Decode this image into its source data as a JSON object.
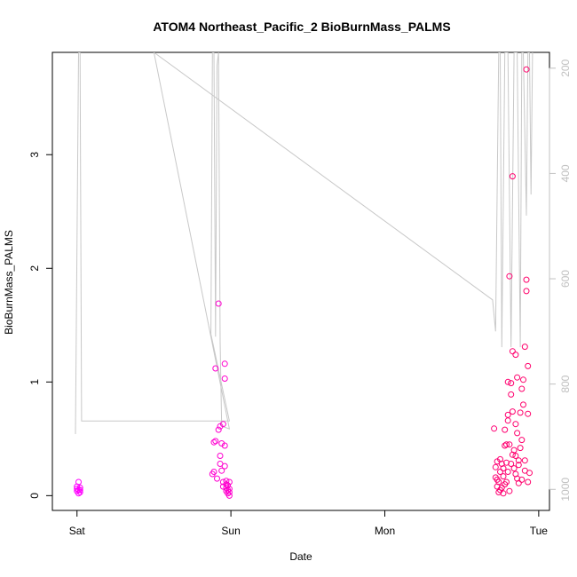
{
  "chart_data": {
    "type": "scatter",
    "title": "ATOM4 Northeast_Pacific_2 BioBurnMass_PALMS",
    "xlabel": "Date",
    "ylabel": "BioBurnMass_PALMS",
    "x_tick_labels": [
      "Sat",
      "Sun",
      "Mon",
      "Tue"
    ],
    "x_tick_values": [
      0,
      1,
      2,
      3
    ],
    "xlim": [
      -0.16,
      3.07
    ],
    "ylim": [
      -0.13,
      3.9
    ],
    "y_ticks": [
      0,
      1,
      2,
      3
    ],
    "right_axis": {
      "ticks": [
        200,
        400,
        600,
        800,
        1000
      ],
      "ylim": [
        1040,
        170
      ],
      "color": "#c0c0c0"
    },
    "grid": false,
    "series": [
      {
        "marker": "open-circle",
        "color_range": [
          "#ff00ff",
          "#ff0066"
        ],
        "points": [
          [
            0.0,
            0.04
          ],
          [
            0.0,
            0.06
          ],
          [
            0.01,
            0.05
          ],
          [
            0.01,
            0.12
          ],
          [
            0.02,
            0.07
          ],
          [
            0.02,
            0.03
          ],
          [
            0.0,
            0.08
          ],
          [
            0.01,
            0.02
          ],
          [
            0.02,
            0.05
          ],
          [
            0.88,
            0.19
          ],
          [
            0.89,
            0.21
          ],
          [
            0.89,
            0.47
          ],
          [
            0.9,
            0.48
          ],
          [
            0.9,
            1.12
          ],
          [
            0.91,
            0.15
          ],
          [
            0.92,
            0.58
          ],
          [
            0.92,
            1.69
          ],
          [
            0.93,
            0.61
          ],
          [
            0.93,
            0.35
          ],
          [
            0.93,
            0.28
          ],
          [
            0.94,
            0.46
          ],
          [
            0.94,
            0.22
          ],
          [
            0.95,
            0.63
          ],
          [
            0.95,
            0.12
          ],
          [
            0.95,
            0.08
          ],
          [
            0.96,
            0.44
          ],
          [
            0.96,
            1.16
          ],
          [
            0.96,
            1.03
          ],
          [
            0.96,
            0.26
          ],
          [
            0.97,
            0.07
          ],
          [
            0.97,
            0.13
          ],
          [
            0.97,
            0.1
          ],
          [
            0.98,
            0.05
          ],
          [
            0.98,
            0.02
          ],
          [
            0.99,
            0.03
          ],
          [
            0.99,
            0.12
          ],
          [
            0.99,
            0.06
          ],
          [
            0.98,
            0.09
          ],
          [
            0.97,
            0.04
          ],
          [
            0.99,
            0.0
          ],
          [
            2.71,
            0.59
          ],
          [
            2.72,
            0.25
          ],
          [
            2.72,
            0.16
          ],
          [
            2.73,
            0.3
          ],
          [
            2.73,
            0.08
          ],
          [
            2.74,
            0.12
          ],
          [
            2.74,
            0.03
          ],
          [
            2.75,
            0.05
          ],
          [
            2.75,
            0.21
          ],
          [
            2.76,
            0.28
          ],
          [
            2.76,
            0.07
          ],
          [
            2.77,
            0.17
          ],
          [
            2.77,
            0.02
          ],
          [
            2.78,
            0.44
          ],
          [
            2.78,
            0.1
          ],
          [
            2.78,
            0.58
          ],
          [
            2.79,
            0.29
          ],
          [
            2.79,
            0.12
          ],
          [
            2.8,
            0.71
          ],
          [
            2.8,
            0.66
          ],
          [
            2.8,
            0.21
          ],
          [
            2.8,
            1.0
          ],
          [
            2.81,
            1.93
          ],
          [
            2.81,
            0.45
          ],
          [
            2.82,
            0.99
          ],
          [
            2.82,
            0.89
          ],
          [
            2.82,
            0.28
          ],
          [
            2.83,
            0.74
          ],
          [
            2.83,
            1.27
          ],
          [
            2.83,
            2.81
          ],
          [
            2.84,
            0.4
          ],
          [
            2.84,
            0.24
          ],
          [
            2.85,
            0.35
          ],
          [
            2.85,
            0.63
          ],
          [
            2.85,
            1.24
          ],
          [
            2.86,
            0.55
          ],
          [
            2.86,
            0.15
          ],
          [
            2.86,
            1.04
          ],
          [
            2.87,
            0.31
          ],
          [
            2.87,
            0.27
          ],
          [
            2.88,
            0.73
          ],
          [
            2.88,
            0.42
          ],
          [
            2.89,
            0.94
          ],
          [
            2.89,
            0.14
          ],
          [
            2.9,
            0.8
          ],
          [
            2.9,
            1.02
          ],
          [
            2.91,
            1.31
          ],
          [
            2.91,
            0.31
          ],
          [
            2.92,
            1.8
          ],
          [
            2.92,
            1.9
          ],
          [
            2.92,
            3.75
          ],
          [
            2.93,
            1.14
          ],
          [
            2.93,
            0.72
          ],
          [
            2.93,
            0.12
          ],
          [
            2.94,
            0.2
          ],
          [
            2.73,
            0.14
          ],
          [
            2.75,
            0.32
          ],
          [
            2.77,
            0.24
          ],
          [
            2.79,
            0.45
          ],
          [
            2.81,
            0.04
          ],
          [
            2.83,
            0.36
          ],
          [
            2.85,
            0.19
          ],
          [
            2.87,
            0.11
          ],
          [
            2.89,
            0.49
          ],
          [
            2.91,
            0.22
          ]
        ]
      },
      {
        "type": "line",
        "color": "#c8c8c8",
        "axis": "right",
        "points": [
          [
            -0.01,
            895
          ],
          [
            0.01,
            170
          ],
          [
            0.02,
            170
          ],
          [
            0.03,
            870
          ],
          [
            0.99,
            870
          ],
          [
            0.99,
            870
          ],
          [
            0.87,
            705
          ],
          [
            0.88,
            170
          ],
          [
            0.89,
            170
          ],
          [
            0.9,
            710
          ],
          [
            0.91,
            195
          ],
          [
            0.92,
            170
          ],
          [
            0.93,
            720
          ],
          [
            0.94,
            880
          ],
          [
            0.99,
            885
          ],
          [
            0.5,
            170
          ],
          [
            2.7,
            640
          ],
          [
            2.72,
            700
          ],
          [
            2.74,
            170
          ],
          [
            2.75,
            170
          ],
          [
            2.76,
            730
          ],
          [
            2.78,
            170
          ],
          [
            2.8,
            170
          ],
          [
            2.82,
            730
          ],
          [
            2.84,
            170
          ],
          [
            2.86,
            170
          ],
          [
            2.88,
            730
          ],
          [
            2.89,
            170
          ],
          [
            2.9,
            170
          ],
          [
            2.92,
            480
          ],
          [
            2.93,
            170
          ],
          [
            2.94,
            170
          ],
          [
            2.95,
            440
          ],
          [
            2.96,
            170
          ]
        ]
      }
    ]
  }
}
